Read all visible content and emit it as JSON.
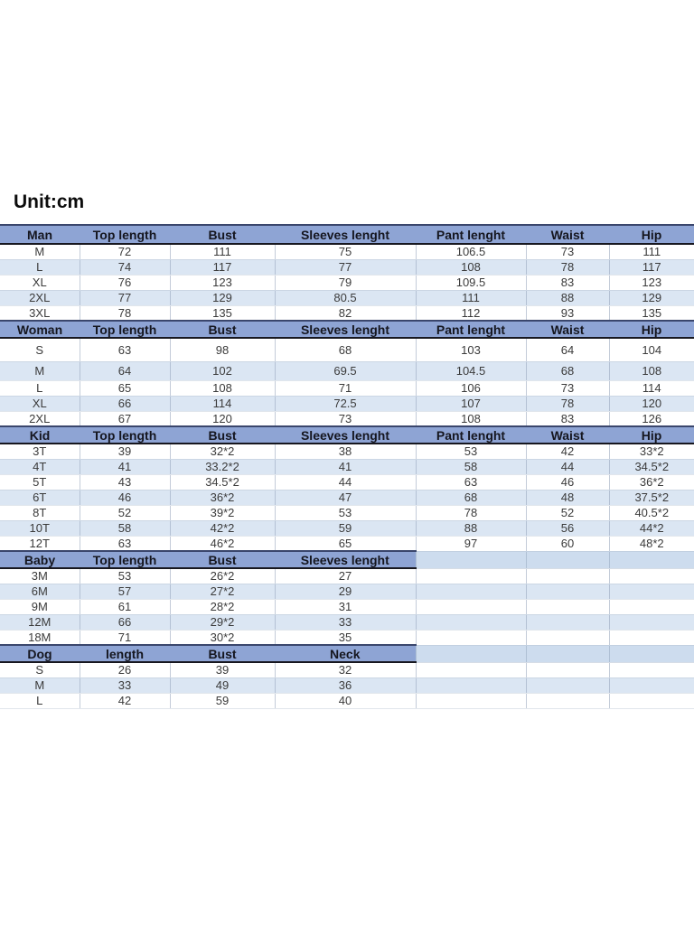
{
  "title": "Unit:cm",
  "colors": {
    "header_bg": "#8ea4d4",
    "stripe_bg": "#dbe6f3",
    "filler_bg": "#cddcee",
    "header_text": "#15161f",
    "cell_text": "#3b3b3b"
  },
  "table": {
    "sections": [
      {
        "name": "Man",
        "headers": [
          "Man",
          "Top length",
          "Bust",
          "Sleeves lenght",
          "Pant lenght",
          "Waist",
          "Hip"
        ],
        "rows": [
          [
            "M",
            "72",
            "111",
            "75",
            "106.5",
            "73",
            "111"
          ],
          [
            "L",
            "74",
            "117",
            "77",
            "108",
            "78",
            "117"
          ],
          [
            "XL",
            "76",
            "123",
            "79",
            "109.5",
            "83",
            "123"
          ],
          [
            "2XL",
            "77",
            "129",
            "80.5",
            "111",
            "88",
            "129"
          ],
          [
            "3XL",
            "78",
            "135",
            "82",
            "112",
            "93",
            "135"
          ]
        ]
      },
      {
        "name": "Woman",
        "headers": [
          "Woman",
          "Top length",
          "Bust",
          "Sleeves lenght",
          "Pant lenght",
          "Waist",
          "Hip"
        ],
        "rows": [
          [
            "S",
            "63",
            "98",
            "68",
            "103",
            "64",
            "104"
          ],
          [
            "M",
            "64",
            "102",
            "69.5",
            "104.5",
            "68",
            "108"
          ],
          [
            "L",
            "65",
            "108",
            "71",
            "106",
            "73",
            "114"
          ],
          [
            "XL",
            "66",
            "114",
            "72.5",
            "107",
            "78",
            "120"
          ],
          [
            "2XL",
            "67",
            "120",
            "73",
            "108",
            "83",
            "126"
          ]
        ]
      },
      {
        "name": "Kid",
        "headers": [
          "Kid",
          "Top length",
          "Bust",
          "Sleeves lenght",
          "Pant lenght",
          "Waist",
          "Hip"
        ],
        "rows": [
          [
            "3T",
            "39",
            "32*2",
            "38",
            "53",
            "42",
            "33*2"
          ],
          [
            "4T",
            "41",
            "33.2*2",
            "41",
            "58",
            "44",
            "34.5*2"
          ],
          [
            "5T",
            "43",
            "34.5*2",
            "44",
            "63",
            "46",
            "36*2"
          ],
          [
            "6T",
            "46",
            "36*2",
            "47",
            "68",
            "48",
            "37.5*2"
          ],
          [
            "8T",
            "52",
            "39*2",
            "53",
            "78",
            "52",
            "40.5*2"
          ],
          [
            "10T",
            "58",
            "42*2",
            "59",
            "88",
            "56",
            "44*2"
          ],
          [
            "12T",
            "63",
            "46*2",
            "65",
            "97",
            "60",
            "48*2"
          ]
        ]
      },
      {
        "name": "Baby",
        "headers": [
          "Baby",
          "Top length",
          "Bust",
          "Sleeves lenght"
        ],
        "rows": [
          [
            "3M",
            "53",
            "26*2",
            "27"
          ],
          [
            "6M",
            "57",
            "27*2",
            "29"
          ],
          [
            "9M",
            "61",
            "28*2",
            "31"
          ],
          [
            "12M",
            "66",
            "29*2",
            "33"
          ],
          [
            "18M",
            "71",
            "30*2",
            "35"
          ]
        ]
      },
      {
        "name": "Dog",
        "headers": [
          "Dog",
          "length",
          "Bust",
          "Neck"
        ],
        "rows": [
          [
            "S",
            "26",
            "39",
            "32"
          ],
          [
            "M",
            "33",
            "49",
            "36"
          ],
          [
            "L",
            "42",
            "59",
            "40"
          ]
        ]
      }
    ]
  }
}
